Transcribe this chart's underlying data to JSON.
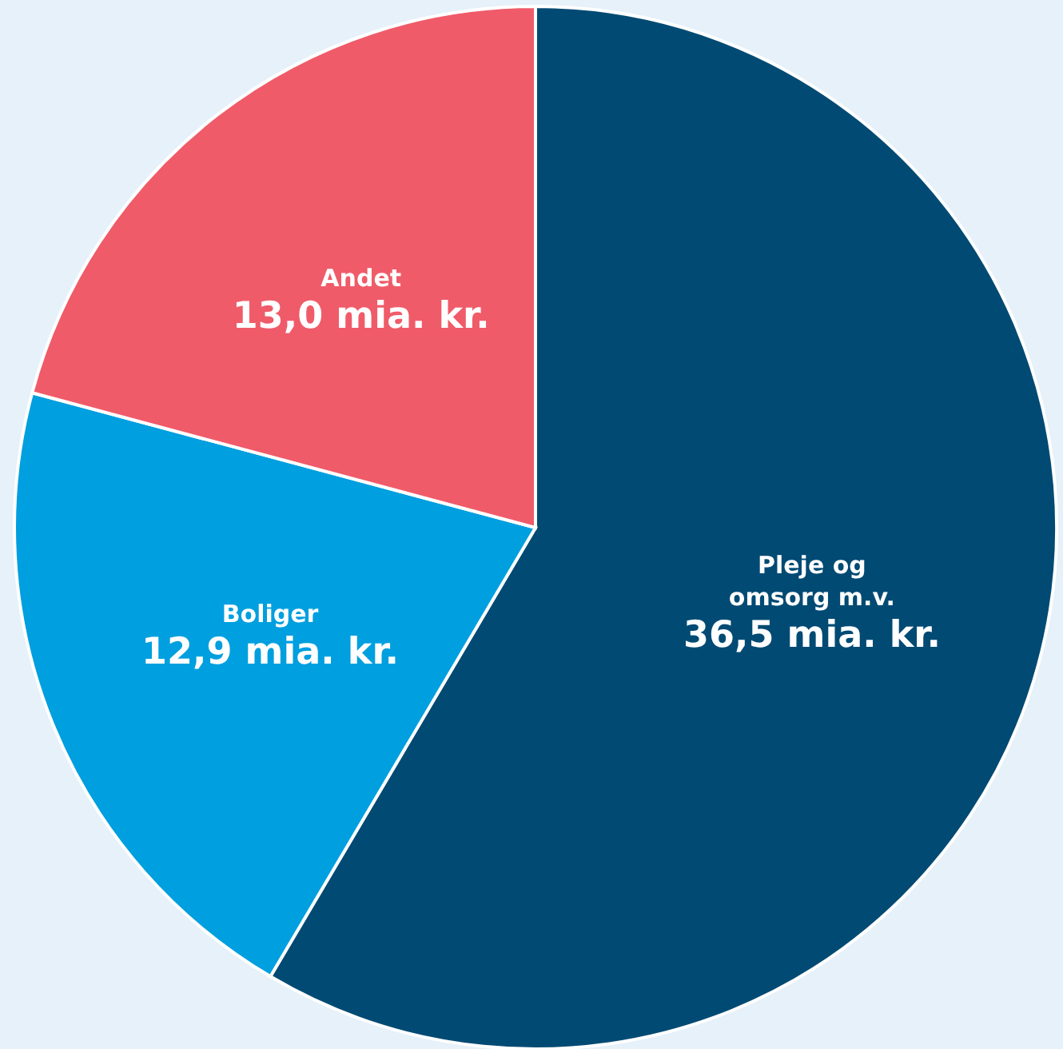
{
  "chart_data": {
    "type": "pie",
    "categories": [
      "Pleje og omsorg m.v.",
      "Boliger",
      "Andet"
    ],
    "values": [
      36.5,
      12.9,
      13.0
    ],
    "colors": [
      "#004a73",
      "#009fdf",
      "#f05b69"
    ],
    "value_labels": [
      "36,5 mia. kr.",
      "12,9 mia. kr.",
      "13,0 mia. kr."
    ]
  }
}
